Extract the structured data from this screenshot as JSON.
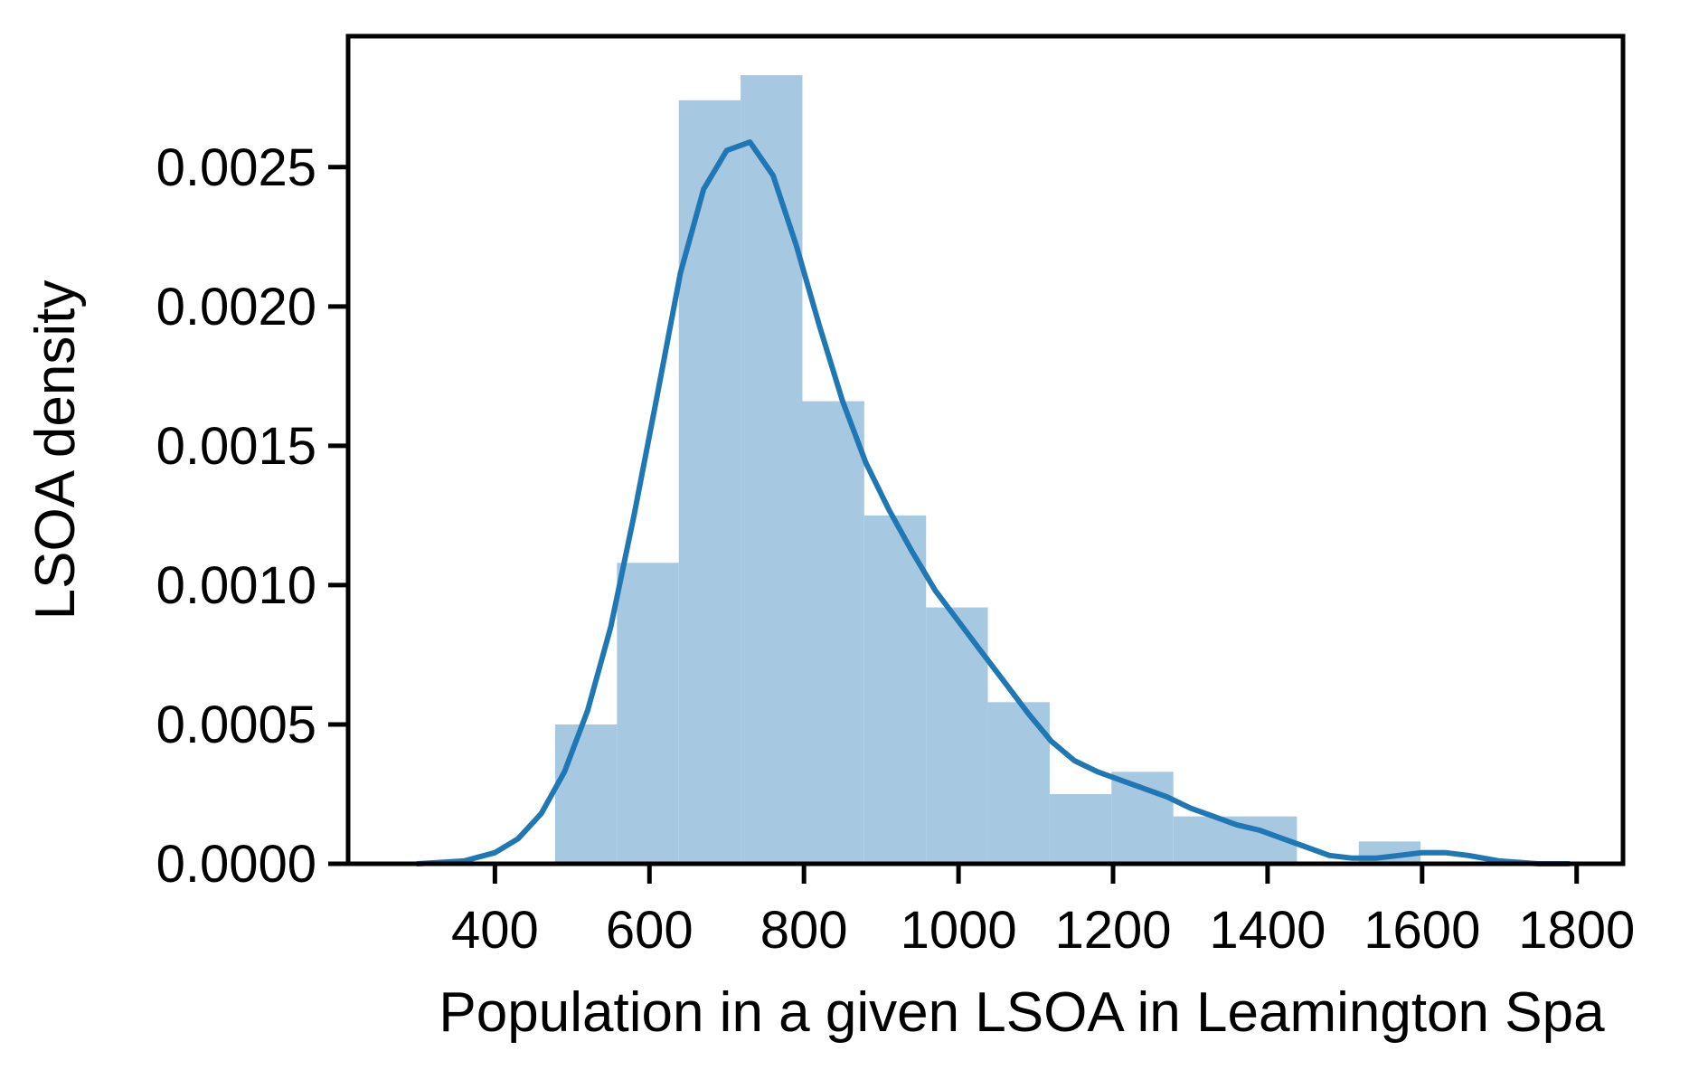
{
  "chart_data": {
    "type": "bar",
    "subtype": "histogram-with-kde",
    "title": "",
    "xlabel": "Population in a given LSOA in Leamington Spa",
    "ylabel": "LSOA density",
    "xlim": [
      210,
      1860
    ],
    "ylim": [
      0,
      0.00297
    ],
    "x_ticks": [
      400,
      600,
      800,
      1000,
      1200,
      1400,
      1600,
      1800
    ],
    "x_tick_labels": [
      "400",
      "600",
      "800",
      "1000",
      "1200",
      "1400",
      "1600",
      "1800"
    ],
    "y_ticks": [
      0,
      0.0005,
      0.001,
      0.0015,
      0.002,
      0.0025
    ],
    "y_tick_labels": [
      "0.0000",
      "0.0005",
      "0.0010",
      "0.0015",
      "0.0020",
      "0.0025"
    ],
    "grid": false,
    "legend": "none",
    "colors": {
      "bars": "#a6c8e1",
      "kde": "#1f77b4",
      "axes": "#000000"
    },
    "histogram": {
      "bin_edges": [
        478,
        558,
        638,
        718,
        798,
        878,
        958,
        1038,
        1118,
        1198,
        1278,
        1358,
        1438,
        1518,
        1598
      ],
      "values": [
        0.0005,
        0.00108,
        0.00274,
        0.00283,
        0.00166,
        0.00125,
        0.00092,
        0.00058,
        0.00025,
        0.00033,
        0.00017,
        0.00017,
        0.0,
        8e-05
      ]
    },
    "kde": {
      "x": [
        300,
        360,
        400,
        430,
        460,
        490,
        520,
        550,
        580,
        610,
        640,
        670,
        700,
        730,
        760,
        790,
        820,
        850,
        880,
        910,
        940,
        970,
        1000,
        1030,
        1060,
        1090,
        1120,
        1150,
        1180,
        1210,
        1240,
        1270,
        1300,
        1330,
        1360,
        1390,
        1420,
        1450,
        1480,
        1510,
        1540,
        1570,
        1600,
        1630,
        1660,
        1700,
        1750,
        1790
      ],
      "y": [
        0.0,
        1e-05,
        4e-05,
        9e-05,
        0.00018,
        0.00033,
        0.00055,
        0.00085,
        0.00125,
        0.00168,
        0.00212,
        0.00242,
        0.00256,
        0.00259,
        0.00247,
        0.00222,
        0.00193,
        0.00166,
        0.00144,
        0.00127,
        0.00112,
        0.00098,
        0.00087,
        0.00076,
        0.00065,
        0.00054,
        0.00044,
        0.00037,
        0.00033,
        0.0003,
        0.00027,
        0.00024,
        0.0002,
        0.00017,
        0.00014,
        0.00012,
        9e-05,
        6e-05,
        3e-05,
        2e-05,
        2e-05,
        3e-05,
        4e-05,
        4e-05,
        3e-05,
        1e-05,
        0.0,
        0.0
      ]
    }
  }
}
